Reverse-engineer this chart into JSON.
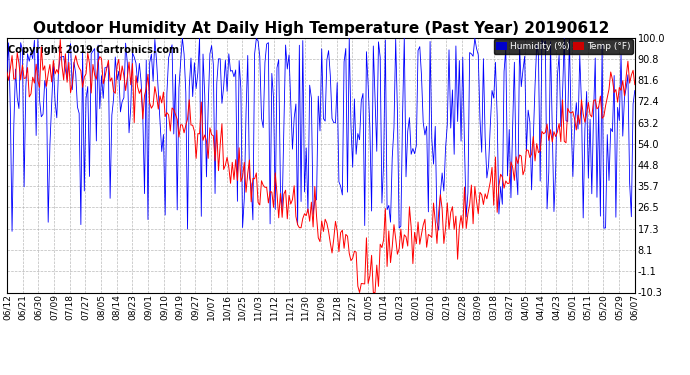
{
  "title": "Outdoor Humidity At Daily High Temperature (Past Year) 20190612",
  "copyright": "Copyright 2019 Cartronics.com",
  "yticks": [
    100.0,
    90.8,
    81.6,
    72.4,
    63.2,
    54.0,
    44.8,
    35.7,
    26.5,
    17.3,
    8.1,
    -1.1,
    -10.3
  ],
  "ylim": [
    -10.3,
    100.0
  ],
  "xtick_labels": [
    "06/12",
    "06/21",
    "06/30",
    "07/09",
    "07/18",
    "07/27",
    "08/05",
    "08/14",
    "08/23",
    "09/01",
    "09/10",
    "09/19",
    "09/27",
    "10/07",
    "10/16",
    "10/25",
    "11/03",
    "11/12",
    "11/21",
    "11/30",
    "12/09",
    "12/18",
    "12/27",
    "01/05",
    "01/14",
    "01/23",
    "02/01",
    "02/10",
    "02/19",
    "02/28",
    "03/09",
    "03/18",
    "03/27",
    "04/05",
    "04/14",
    "04/23",
    "05/01",
    "05/11",
    "05/20",
    "05/29",
    "06/07"
  ],
  "humidity_color": "#0000ff",
  "temp_color": "#ff0000",
  "background_color": "#ffffff",
  "plot_bg_color": "#ffffff",
  "grid_color": "#aaaaaa",
  "title_fontsize": 11,
  "copyright_fontsize": 7,
  "tick_fontsize": 7,
  "legend_humidity_label": "Humidity (%)",
  "legend_temp_label": "Temp (°F)",
  "legend_humidity_bg": "#0000cc",
  "legend_temp_bg": "#cc0000",
  "n_points": 366
}
